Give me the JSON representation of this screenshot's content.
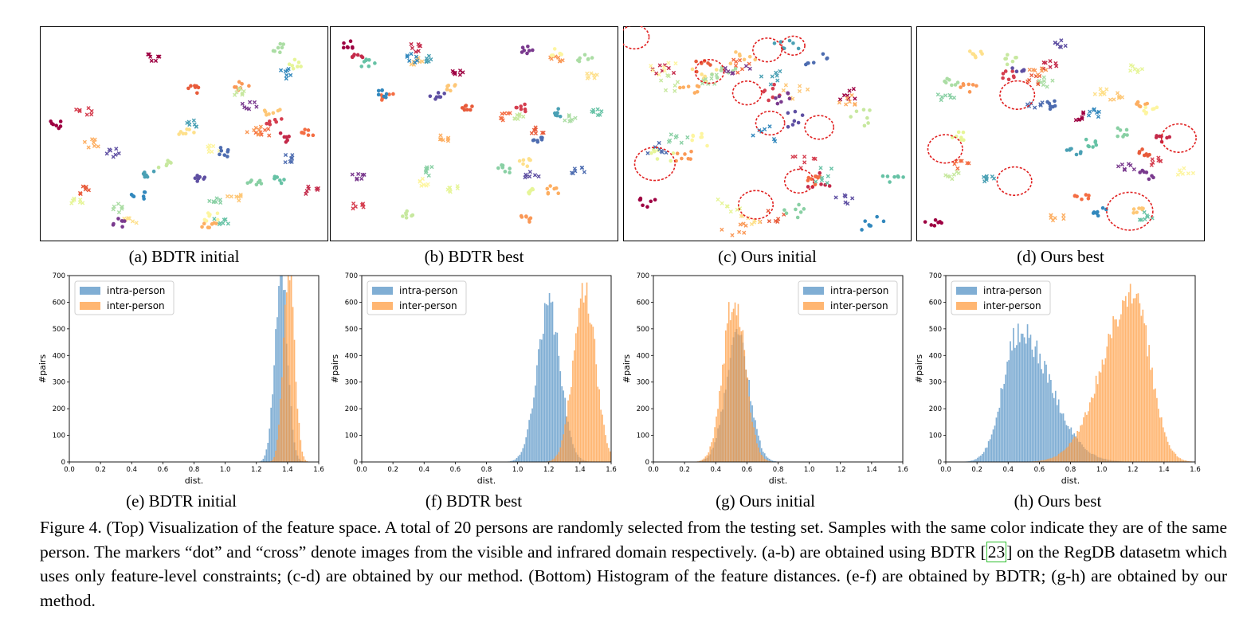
{
  "panels_top": [
    {
      "id": "a",
      "caption": "(a) BDTR initial"
    },
    {
      "id": "b",
      "caption": "(b) BDTR best"
    },
    {
      "id": "c",
      "caption": "(c) Ours initial"
    },
    {
      "id": "d",
      "caption": "(d) Ours best"
    }
  ],
  "panels_bottom": [
    {
      "id": "e",
      "caption": "(e) BDTR initial"
    },
    {
      "id": "f",
      "caption": "(f) BDTR best"
    },
    {
      "id": "g",
      "caption": "(g) Ours initial"
    },
    {
      "id": "h",
      "caption": "(h) Ours best"
    }
  ],
  "caption": {
    "part1": "Figure 4. (Top) Visualization of the feature space. A total of 20 persons are randomly selected from the testing set. Samples with the same color indicate they are of the same person. The markers “dot” and “cross” denote images from the visible and infrared domain respectively. (a-b) are obtained using BDTR [",
    "cite": "23",
    "part2": "] on the RegDB datasetm which uses only feature-level constraints; (c-d) are obtained by our method. (Bottom) Histogram of the feature distances. (e-f) are obtained by BDTR; (g-h) are obtained by our method."
  },
  "colors": {
    "intra": "#4f8fc4",
    "inter": "#ff9a3c",
    "overlap": "#c8823e",
    "palette": [
      "#9e0142",
      "#c42a4a",
      "#d53e4f",
      "#e85b3a",
      "#f46d43",
      "#fa9856",
      "#fdae61",
      "#fec776",
      "#fee08b",
      "#fdf5a0",
      "#e6f598",
      "#c7e89f",
      "#abdda4",
      "#89d0a4",
      "#66c2a5",
      "#4aa0b4",
      "#3288bd",
      "#4d6cb0",
      "#5e4fa2",
      "#7a3a8e"
    ]
  },
  "chart_data": [
    {
      "type": "histogram",
      "panel": "e",
      "xlabel": "dist.",
      "ylabel": "#pairs",
      "xlim": [
        0,
        1.6
      ],
      "ylim": [
        0,
        700
      ],
      "xticks": [
        "0.0",
        "0.2",
        "0.4",
        "0.6",
        "0.8",
        "1.0",
        "1.2",
        "1.4",
        "1.6"
      ],
      "yticks": [
        "0",
        "100",
        "200",
        "300",
        "400",
        "500",
        "600",
        "700"
      ],
      "legend": "top-left",
      "series": [
        {
          "name": "intra-person",
          "shape": "gaussian",
          "mean": 1.36,
          "sd": 0.04,
          "peak": 720
        },
        {
          "name": "inter-person",
          "shape": "gaussian",
          "mean": 1.41,
          "sd": 0.035,
          "peak": 760
        }
      ]
    },
    {
      "type": "histogram",
      "panel": "f",
      "xlabel": "dist.",
      "ylabel": "#pairs",
      "xlim": [
        0,
        1.6
      ],
      "ylim": [
        0,
        700
      ],
      "xticks": [
        "0.0",
        "0.2",
        "0.4",
        "0.6",
        "0.8",
        "1.0",
        "1.2",
        "1.4",
        "1.6"
      ],
      "yticks": [
        "0",
        "100",
        "200",
        "300",
        "400",
        "500",
        "600",
        "700"
      ],
      "legend": "top-left",
      "series": [
        {
          "name": "intra-person",
          "shape": "gaussian",
          "mean": 1.2,
          "sd": 0.075,
          "peak": 590
        },
        {
          "name": "inter-person",
          "shape": "gaussian",
          "mean": 1.43,
          "sd": 0.07,
          "peak": 650
        }
      ]
    },
    {
      "type": "histogram",
      "panel": "g",
      "xlabel": "dist.",
      "ylabel": "#pairs",
      "xlim": [
        0,
        1.6
      ],
      "ylim": [
        0,
        700
      ],
      "xticks": [
        "0.0",
        "0.2",
        "0.4",
        "0.6",
        "0.8",
        "1.0",
        "1.2",
        "1.4",
        "1.6"
      ],
      "yticks": [
        "0",
        "100",
        "200",
        "300",
        "400",
        "500",
        "600",
        "700"
      ],
      "legend": "top-right",
      "series": [
        {
          "name": "intra-person",
          "shape": "gaussian",
          "mean": 0.54,
          "sd": 0.075,
          "peak": 480
        },
        {
          "name": "inter-person",
          "shape": "gaussian",
          "mean": 0.52,
          "sd": 0.07,
          "peak": 620
        }
      ]
    },
    {
      "type": "histogram",
      "panel": "h",
      "xlabel": "dist.",
      "ylabel": "#pairs",
      "xlim": [
        0,
        1.6
      ],
      "ylim": [
        0,
        700
      ],
      "xticks": [
        "0.0",
        "0.2",
        "0.4",
        "0.6",
        "0.8",
        "1.0",
        "1.2",
        "1.4",
        "1.6"
      ],
      "yticks": [
        "0",
        "100",
        "200",
        "300",
        "400",
        "500",
        "600",
        "700"
      ],
      "legend": "top-left",
      "series": [
        {
          "name": "intra-person",
          "shape": "skewed",
          "mean": 0.47,
          "sd": 0.1,
          "sd_right": 0.2,
          "peak": 490
        },
        {
          "name": "inter-person",
          "shape": "skewed",
          "mean": 1.2,
          "sd": 0.19,
          "sd_right": 0.11,
          "peak": 640
        }
      ]
    }
  ]
}
